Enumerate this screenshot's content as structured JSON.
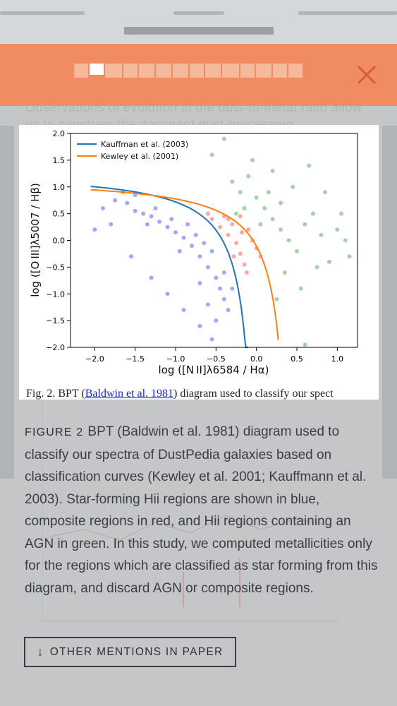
{
  "banner": {
    "close_icon": "close-icon",
    "color": "#f08b62"
  },
  "background_text": "Observations of evolution in the dust-to-metal ratio allow us to constrain the dominant dust-processing",
  "figure": {
    "partial_caption": {
      "prefix": "Fig. 2. BPT (",
      "link": "Baldwin et al. 1981",
      "suffix": ") diagram used to classify our spect"
    }
  },
  "chart_data": {
    "type": "scatter",
    "xlabel": "log ([N II]λ6584 / Hα)",
    "ylabel": "log ([O III]λ5007 / Hβ)",
    "xlim": [
      -2.3,
      1.25
    ],
    "ylim": [
      -2.0,
      2.0
    ],
    "x_ticks": [
      "−2.0",
      "−1.5",
      "−1.0",
      "−0.5",
      "0.0",
      "0.5",
      "1.0"
    ],
    "y_ticks": [
      "2.0",
      "1.5",
      "1.0",
      "0.5",
      "0.0",
      "−0.5",
      "−1.0",
      "−1.5",
      "−2.0"
    ],
    "legend": {
      "placement": "top-left",
      "entries": [
        {
          "name": "Kauffman et al. (2003)",
          "color": "#1f77b4"
        },
        {
          "name": "Kewley et al. (2001)",
          "color": "#ff7f0e"
        }
      ]
    },
    "curves": [
      {
        "name": "Kauffman et al. (2003)",
        "color": "#1f77b4",
        "formula": "0.61/(x-0.05)+1.3",
        "x_range": [
          -2.05,
          -0.1
        ]
      },
      {
        "name": "Kewley et al. (2001)",
        "color": "#ff7f0e",
        "formula": "0.61/(x-0.47)+1.19",
        "x_range": [
          -2.05,
          0.27
        ]
      }
    ],
    "series": [
      {
        "region": "star-forming",
        "color": "#0000ff",
        "points": [
          [
            -1.9,
            0.6
          ],
          [
            -1.75,
            0.75
          ],
          [
            -1.6,
            0.7
          ],
          [
            -1.5,
            0.55
          ],
          [
            -1.4,
            0.5
          ],
          [
            -1.3,
            0.45
          ],
          [
            -1.2,
            0.35
          ],
          [
            -1.1,
            0.25
          ],
          [
            -1.0,
            0.15
          ],
          [
            -0.9,
            0.05
          ],
          [
            -0.8,
            -0.1
          ],
          [
            -0.7,
            -0.3
          ],
          [
            -0.6,
            -0.5
          ],
          [
            -0.5,
            -0.7
          ],
          [
            -0.45,
            -0.9
          ],
          [
            -0.4,
            -1.1
          ],
          [
            -0.35,
            -1.3
          ],
          [
            -0.5,
            -1.5
          ],
          [
            -0.6,
            -1.2
          ],
          [
            -0.7,
            -0.8
          ],
          [
            -1.35,
            0.3
          ],
          [
            -1.25,
            0.6
          ],
          [
            -1.05,
            0.4
          ],
          [
            -0.85,
            0.3
          ],
          [
            -0.95,
            -0.2
          ],
          [
            -0.75,
            0.1
          ],
          [
            -0.55,
            -0.2
          ],
          [
            -0.65,
            -0.05
          ],
          [
            -0.4,
            -0.6
          ],
          [
            -0.3,
            -0.9
          ],
          [
            -1.8,
            0.3
          ],
          [
            -2.0,
            0.2
          ],
          [
            -1.55,
            -0.3
          ],
          [
            -1.3,
            -0.7
          ],
          [
            -1.1,
            -1.0
          ],
          [
            -0.9,
            -1.3
          ],
          [
            -0.7,
            -1.6
          ],
          [
            -0.55,
            -1.85
          ],
          [
            -1.65,
            0.9
          ],
          [
            -1.5,
            0.85
          ]
        ]
      },
      {
        "region": "composite",
        "color": "#ff0000",
        "points": [
          [
            -0.55,
            0.4
          ],
          [
            -0.45,
            0.25
          ],
          [
            -0.35,
            0.1
          ],
          [
            -0.25,
            -0.05
          ],
          [
            -0.2,
            -0.25
          ],
          [
            -0.15,
            -0.45
          ],
          [
            -0.3,
            0.3
          ],
          [
            -0.1,
            0.2
          ],
          [
            -0.05,
            0.0
          ],
          [
            0.0,
            -0.15
          ],
          [
            -0.2,
            0.45
          ],
          [
            -0.4,
            0.45
          ],
          [
            -0.28,
            -0.3
          ],
          [
            -0.12,
            -0.6
          ],
          [
            0.05,
            -0.3
          ],
          [
            -0.6,
            0.5
          ],
          [
            -0.35,
            0.4
          ],
          [
            -0.18,
            0.15
          ]
        ]
      },
      {
        "region": "AGN",
        "color": "#008000",
        "points": [
          [
            -0.3,
            1.1
          ],
          [
            -0.2,
            0.9
          ],
          [
            -0.1,
            1.2
          ],
          [
            0.0,
            0.8
          ],
          [
            0.1,
            0.6
          ],
          [
            0.2,
            0.4
          ],
          [
            0.3,
            0.2
          ],
          [
            0.4,
            0.0
          ],
          [
            0.5,
            -0.2
          ],
          [
            0.6,
            0.3
          ],
          [
            0.7,
            0.5
          ],
          [
            0.8,
            0.1
          ],
          [
            0.9,
            -0.4
          ],
          [
            1.0,
            0.2
          ],
          [
            1.1,
            0.0
          ],
          [
            1.15,
            -0.3
          ],
          [
            -0.55,
            1.6
          ],
          [
            -0.4,
            1.9
          ],
          [
            -0.05,
            1.5
          ],
          [
            0.2,
            1.3
          ],
          [
            0.45,
            1.0
          ],
          [
            0.65,
            1.4
          ],
          [
            0.85,
            0.9
          ],
          [
            0.35,
            -0.6
          ],
          [
            0.55,
            -0.9
          ],
          [
            0.75,
            -0.5
          ],
          [
            0.25,
            -1.1
          ],
          [
            0.6,
            -1.95
          ],
          [
            -0.15,
            0.6
          ],
          [
            0.05,
            0.3
          ],
          [
            0.15,
            0.9
          ],
          [
            -0.25,
            0.5
          ],
          [
            0.3,
            0.7
          ],
          [
            1.05,
            0.5
          ]
        ]
      }
    ]
  },
  "caption": {
    "label": "FIGURE 2",
    "text": "BPT (Baldwin et al. 1981) diagram used to classify our spectra of DustPedia galaxies based on classification curves (Kewley et al. 2001; Kauffmann et al. 2003). Star-forming Hii regions are shown in blue, composite regions in red, and Hii regions containing an AGN in green. In this study, we computed metallicities only for the regions which are classified as star forming from this diagram, and discard AGN or composite regions."
  },
  "mentions_button": {
    "icon": "arrow-down-icon",
    "arrow": "↓",
    "label": "OTHER MENTIONS IN PAPER"
  }
}
